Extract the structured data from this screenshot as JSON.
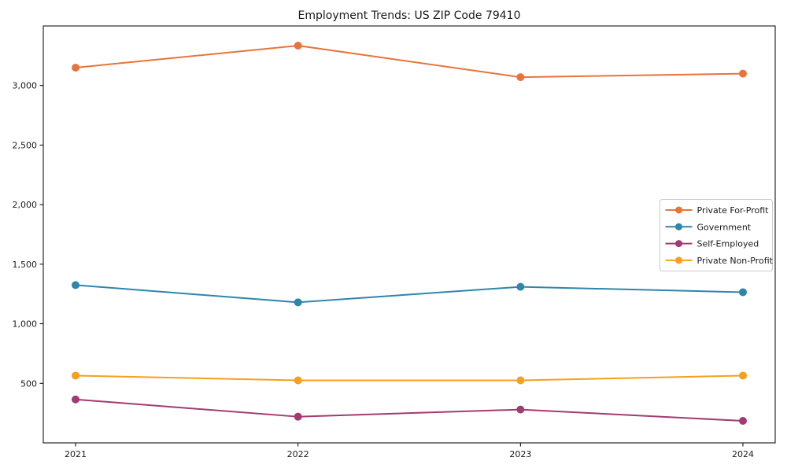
{
  "chart_data": {
    "type": "line",
    "title": "Employment Trends: US ZIP Code 79410",
    "x": [
      2021,
      2022,
      2023,
      2024
    ],
    "series": [
      {
        "name": "Private For-Profit",
        "color": "#E8743B",
        "values": [
          3150,
          3335,
          3070,
          3100
        ]
      },
      {
        "name": "Government",
        "color": "#2E86AB",
        "values": [
          1325,
          1180,
          1310,
          1265
        ]
      },
      {
        "name": "Self-Employed",
        "color": "#A23B72",
        "values": [
          365,
          220,
          280,
          185
        ]
      },
      {
        "name": "Private Non-Profit",
        "color": "#F5A01E",
        "values": [
          565,
          525,
          525,
          565
        ]
      }
    ],
    "xlabel": "",
    "ylabel": "",
    "ylim": [
      0,
      3500
    ],
    "yticks": [
      500,
      1000,
      1500,
      2000,
      2500,
      3000
    ],
    "grid": false,
    "legend_position": "center right",
    "marker": "circle",
    "background_color": "#ffffff",
    "spine_color": "#000000"
  }
}
